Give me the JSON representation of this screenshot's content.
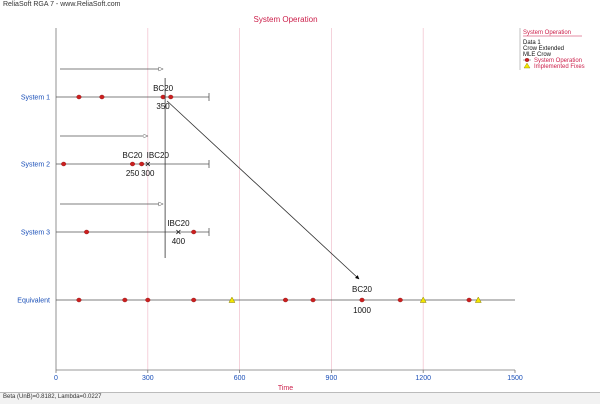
{
  "app": {
    "brand_left": "ReliaSoft RGA 7 - ",
    "brand_right": "www.ReliaSoft.com"
  },
  "status": {
    "text": "Beta (UnB)=0.8182, Lambda=0.0227"
  },
  "legend": {
    "title": "System Operation",
    "lines": [
      "Data 1",
      "Crow Extended",
      "MLE Crow"
    ],
    "entries": [
      {
        "label": "System Operation",
        "marker": "dot",
        "color": "#cc1f1f"
      },
      {
        "label": "Implemented Fixes",
        "marker": "triangle",
        "color": "#f2e600"
      }
    ]
  },
  "chart_data": {
    "type": "scatter",
    "title": "System Operation",
    "xlabel": "Time",
    "ylabel": "",
    "xlim": [
      0,
      1500
    ],
    "xticks": [
      0,
      300,
      600,
      900,
      1200,
      1500
    ],
    "grid": true,
    "legend_position": "right",
    "categories": [
      "System 1",
      "System 2",
      "System 3",
      "Equivalent"
    ],
    "systems": [
      {
        "name": "System 1",
        "end": 500,
        "start_arrow_to": 350,
        "failures": [
          75,
          150,
          350,
          375
        ],
        "fix_line": 350,
        "annotations": [
          {
            "mode": "BC20",
            "time": 350,
            "time_label": "350"
          }
        ]
      },
      {
        "name": "System 2",
        "end": 500,
        "start_arrow_to": 300,
        "failures": [
          25,
          250,
          280
        ],
        "fix_line": 300,
        "annotations": [
          {
            "mode": "BC20",
            "time": 250,
            "time_label": "250"
          },
          {
            "mode": "IBC20",
            "time": 300,
            "time_label": "300"
          }
        ]
      },
      {
        "name": "System 3",
        "end": 500,
        "start_arrow_to": 350,
        "failures": [
          100,
          450
        ],
        "annotations": [
          {
            "mode": "IBC20",
            "time": 400,
            "time_label": "400"
          }
        ]
      }
    ],
    "equivalent": {
      "name": "Equivalent",
      "end": 1500,
      "failures": [
        75,
        225,
        300,
        450,
        750,
        840,
        1000,
        1125,
        1350
      ],
      "fixes": [
        575,
        1200,
        1380
      ],
      "annotation": {
        "mode": "BC20",
        "time": 1000,
        "time_label": "1000"
      }
    },
    "mapping_arrow": {
      "from_system": "System 1",
      "from_time": 350,
      "to_time": 1000
    }
  }
}
